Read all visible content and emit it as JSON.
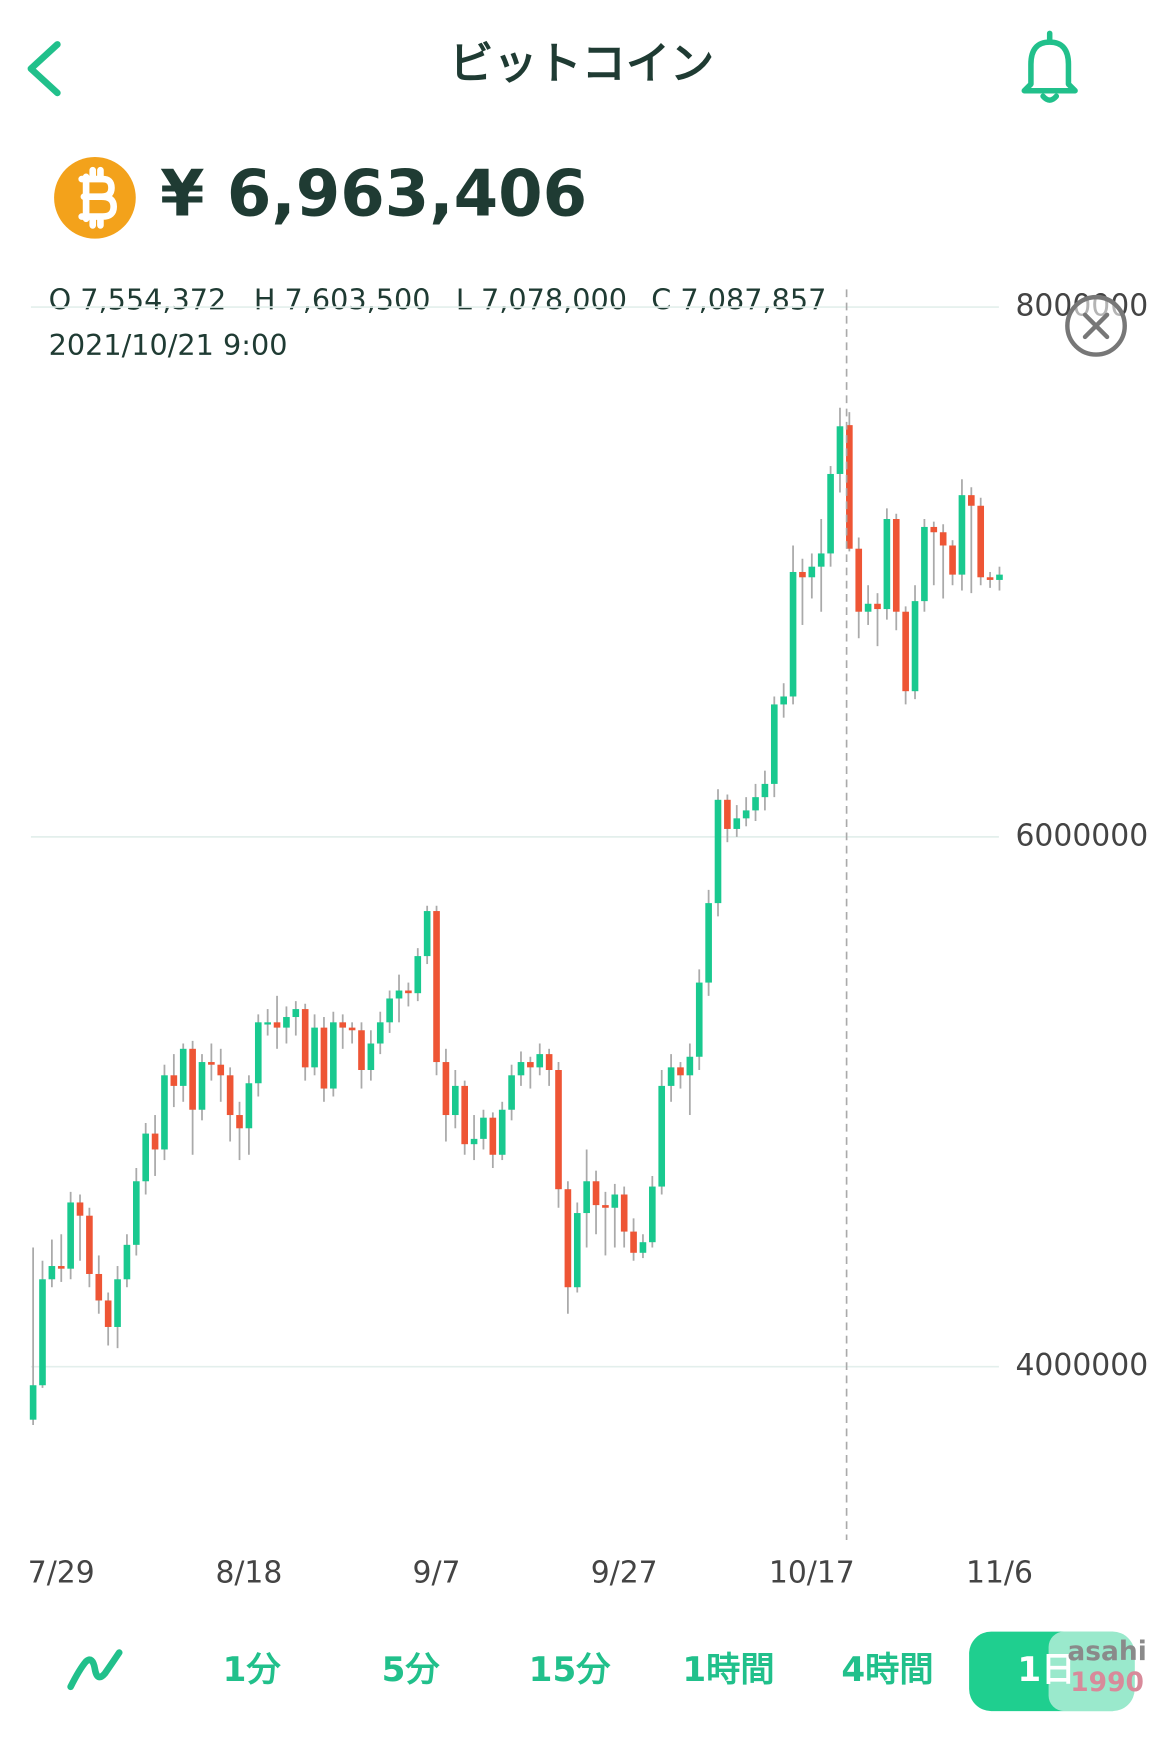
{
  "header": {
    "title": "ビットコイン"
  },
  "price": "¥ 6,963,406",
  "chart_data": {
    "type": "candlestick",
    "categories": [
      null,
      null,
      null,
      "7/29",
      null,
      null,
      null,
      null,
      null,
      null,
      null,
      null,
      null,
      null,
      null,
      null,
      null,
      null,
      null,
      null,
      null,
      null,
      null,
      "8/18",
      null,
      null,
      null,
      null,
      null,
      null,
      null,
      null,
      null,
      null,
      null,
      null,
      null,
      null,
      null,
      null,
      null,
      null,
      null,
      "9/7",
      null,
      null,
      null,
      null,
      null,
      null,
      null,
      null,
      null,
      null,
      null,
      null,
      null,
      null,
      null,
      null,
      null,
      null,
      null,
      "9/27",
      null,
      null,
      null,
      null,
      null,
      null,
      null,
      null,
      null,
      null,
      null,
      null,
      null,
      null,
      null,
      null,
      null,
      null,
      null,
      "10/17",
      null,
      null,
      null,
      null,
      null,
      null,
      null,
      null,
      null,
      null,
      null,
      null,
      null,
      null,
      null,
      null,
      null,
      null,
      null,
      "11/6"
    ],
    "open": [
      3800000,
      3930000,
      4330000,
      4380000,
      4370000,
      4620000,
      4570000,
      4350000,
      4250000,
      4150000,
      4330000,
      4460000,
      4700000,
      4880000,
      4820000,
      5100000,
      5060000,
      5200000,
      4970000,
      5150000,
      5140000,
      5100000,
      4950000,
      4900000,
      5070000,
      5300000,
      5300000,
      5280000,
      5320000,
      5350000,
      5130000,
      5280000,
      5050000,
      5300000,
      5280000,
      5270000,
      5120000,
      5220000,
      5300000,
      5390000,
      5420000,
      5410000,
      5550000,
      5720000,
      5150000,
      4950000,
      5060000,
      4840000,
      4860000,
      4940000,
      4800000,
      4970000,
      5100000,
      5150000,
      5130000,
      5180000,
      5120000,
      4670000,
      4300000,
      4580000,
      4700000,
      4610000,
      4600000,
      4650000,
      4510000,
      4430000,
      4470000,
      4680000,
      5060000,
      5130000,
      5100000,
      5170000,
      5450000,
      5750000,
      6140000,
      6030000,
      6070000,
      6100000,
      6150000,
      6200000,
      6500000,
      6530000,
      7000000,
      6980000,
      7020000,
      7070000,
      7370000,
      7554372,
      7087857,
      6850000,
      6880000,
      6860000,
      7200000,
      6850000,
      6550000,
      6890000,
      7170000,
      7150000,
      7100000,
      6990000,
      7290000,
      7250000,
      6980000,
      6970000
    ],
    "high": [
      4450000,
      4400000,
      4480000,
      4500000,
      4660000,
      4650000,
      4600000,
      4420000,
      4280000,
      4380000,
      4500000,
      4750000,
      4920000,
      4950000,
      5140000,
      5180000,
      5220000,
      5230000,
      5180000,
      5220000,
      5200000,
      5130000,
      5000000,
      5100000,
      5330000,
      5350000,
      5400000,
      5360000,
      5380000,
      5370000,
      5330000,
      5320000,
      5340000,
      5330000,
      5300000,
      5300000,
      5270000,
      5340000,
      5420000,
      5480000,
      5450000,
      5580000,
      5740000,
      5740000,
      5200000,
      5120000,
      5080000,
      4950000,
      4970000,
      4960000,
      5000000,
      5140000,
      5190000,
      5170000,
      5220000,
      5200000,
      5150000,
      4700000,
      4620000,
      4820000,
      4740000,
      4660000,
      4690000,
      4680000,
      4560000,
      4500000,
      4720000,
      5120000,
      5180000,
      5150000,
      5220000,
      5500000,
      5800000,
      6180000,
      6160000,
      6120000,
      6150000,
      6200000,
      6250000,
      6530000,
      6580000,
      7100000,
      7050000,
      7070000,
      7200000,
      7400000,
      7620000,
      7603500,
      7130000,
      6950000,
      6920000,
      7240000,
      7220000,
      6870000,
      6950000,
      7200000,
      7190000,
      7180000,
      7120000,
      7350000,
      7320000,
      7280000,
      7000000,
      7020000
    ],
    "low": [
      3780000,
      3920000,
      4300000,
      4320000,
      4330000,
      4400000,
      4300000,
      4200000,
      4080000,
      4070000,
      4300000,
      4420000,
      4650000,
      4720000,
      4780000,
      4980000,
      5000000,
      4800000,
      4930000,
      5080000,
      5000000,
      4850000,
      4780000,
      4800000,
      5020000,
      5250000,
      5200000,
      5220000,
      5250000,
      5080000,
      5100000,
      5000000,
      5020000,
      5200000,
      5220000,
      5050000,
      5080000,
      5180000,
      5260000,
      5300000,
      5360000,
      5380000,
      5520000,
      5100000,
      4850000,
      4900000,
      4800000,
      4780000,
      4820000,
      4750000,
      4780000,
      4930000,
      5060000,
      5050000,
      5100000,
      5060000,
      4600000,
      4200000,
      4280000,
      4450000,
      4500000,
      4420000,
      4450000,
      4450000,
      4400000,
      4410000,
      4450000,
      4650000,
      5000000,
      5050000,
      4950000,
      5120000,
      5400000,
      5700000,
      5980000,
      6000000,
      6040000,
      6060000,
      6100000,
      6150000,
      6450000,
      6500000,
      6800000,
      6900000,
      6850000,
      7020000,
      7300000,
      7078000,
      6750000,
      6800000,
      6720000,
      6820000,
      6780000,
      6500000,
      6520000,
      6850000,
      6950000,
      6900000,
      6950000,
      6930000,
      6920000,
      6950000,
      6940000,
      6930000
    ],
    "close": [
      3930000,
      4330000,
      4380000,
      4370000,
      4620000,
      4570000,
      4350000,
      4250000,
      4150000,
      4330000,
      4460000,
      4700000,
      4880000,
      4820000,
      5100000,
      5060000,
      5200000,
      4970000,
      5150000,
      5140000,
      5100000,
      4950000,
      4900000,
      5070000,
      5300000,
      5300000,
      5280000,
      5320000,
      5350000,
      5130000,
      5280000,
      5050000,
      5300000,
      5280000,
      5270000,
      5120000,
      5220000,
      5300000,
      5390000,
      5420000,
      5410000,
      5550000,
      5720000,
      5150000,
      4950000,
      5060000,
      4840000,
      4860000,
      4940000,
      4800000,
      4970000,
      5100000,
      5150000,
      5130000,
      5180000,
      5120000,
      4670000,
      4300000,
      4580000,
      4700000,
      4610000,
      4600000,
      4650000,
      4510000,
      4430000,
      4470000,
      4680000,
      5060000,
      5130000,
      5100000,
      5170000,
      5450000,
      5750000,
      6140000,
      6030000,
      6070000,
      6100000,
      6150000,
      6200000,
      6500000,
      6530000,
      7000000,
      6980000,
      7020000,
      7070000,
      7370000,
      7550000,
      7087857,
      6850000,
      6880000,
      6860000,
      7200000,
      6850000,
      6550000,
      6890000,
      7170000,
      7150000,
      7100000,
      6990000,
      7290000,
      7250000,
      6980000,
      6970000,
      6990000
    ],
    "up_color": "#19c98f",
    "down_color": "#ee5535",
    "ylim": [
      3400000,
      8100000
    ],
    "yticks": [
      4000000,
      6000000,
      8000000
    ],
    "grid": true,
    "crosshair": {
      "ohlc": [
        "O 7,554,372",
        "H 7,603,500",
        "L 7,078,000",
        "C 7,087,857"
      ],
      "time": "2021/10/21 9:00"
    }
  },
  "timeframes": [
    "1分",
    "5分",
    "15分",
    "1時間",
    "4時間",
    "1日"
  ],
  "selected_timeframe": 5,
  "watermark": [
    "asahi",
    "1990"
  ]
}
